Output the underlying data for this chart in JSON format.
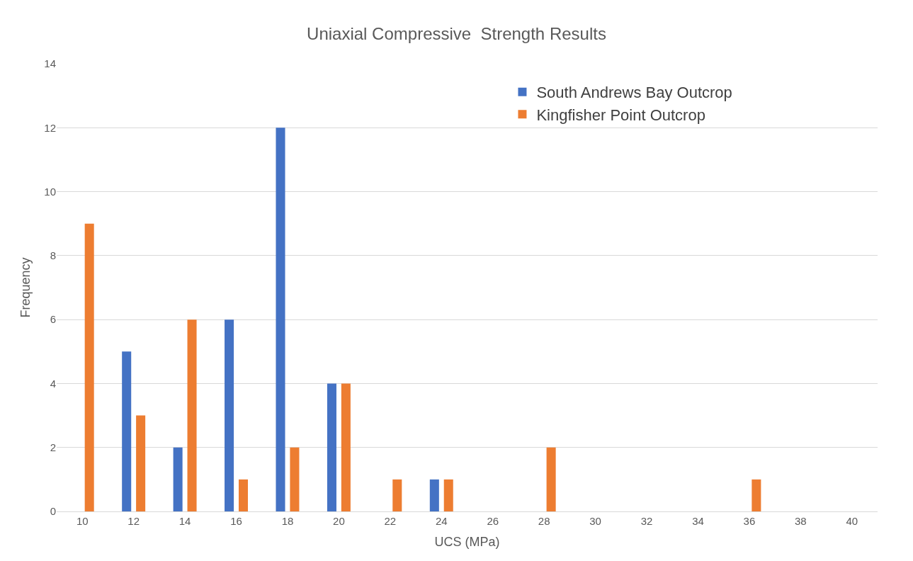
{
  "chart_data": {
    "type": "bar",
    "title": "Uniaxial Compressive  Strength Results",
    "xlabel": "UCS (MPa)",
    "ylabel": "Frequency",
    "categories": [
      "10",
      "12",
      "14",
      "16",
      "18",
      "20",
      "22",
      "24",
      "26",
      "28",
      "30",
      "32",
      "34",
      "36",
      "38",
      "40"
    ],
    "series": [
      {
        "name": "South Andrews Bay Outcrop",
        "color": "#4472c4",
        "values": [
          0,
          5,
          2,
          6,
          12,
          4,
          0,
          1,
          0,
          0,
          0,
          0,
          0,
          0,
          0,
          0
        ]
      },
      {
        "name": "Kingfisher Point Outcrop",
        "color": "#ed7d31",
        "values": [
          9,
          3,
          6,
          1,
          2,
          4,
          1,
          1,
          0,
          2,
          0,
          0,
          0,
          1,
          0,
          0
        ]
      }
    ],
    "ylim": [
      0,
      14
    ],
    "yticks": [
      0,
      2,
      4,
      6,
      8,
      10,
      12,
      14
    ],
    "grid": "y",
    "legend": "top right"
  }
}
